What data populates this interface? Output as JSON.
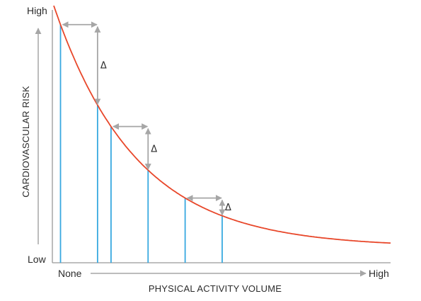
{
  "colors": {
    "curve": "#e8472a",
    "markers": "#38a9e0",
    "arrows": "#a6a6a6",
    "axis": "#999999",
    "text": "#2b2b2b"
  },
  "chart_data": {
    "type": "line",
    "curve_shape": "decreasing, convex (exponential decay)",
    "y_axis_label": "CARDIOVASCULAR RISK",
    "y_axis_top_label": "High",
    "y_axis_bottom_label": "Low",
    "x_axis_label": "PHYSICAL ACTIVITY VOLUME",
    "x_axis_start_label": "None",
    "x_axis_end_label": "High",
    "marker_pairs": [
      {
        "x_from": 0.02,
        "x_to": 0.13,
        "delta_label": "Δ"
      },
      {
        "x_from": 0.17,
        "x_to": 0.28,
        "delta_label": "Δ"
      },
      {
        "x_from": 0.39,
        "x_to": 0.5,
        "delta_label": "Δ"
      }
    ]
  }
}
